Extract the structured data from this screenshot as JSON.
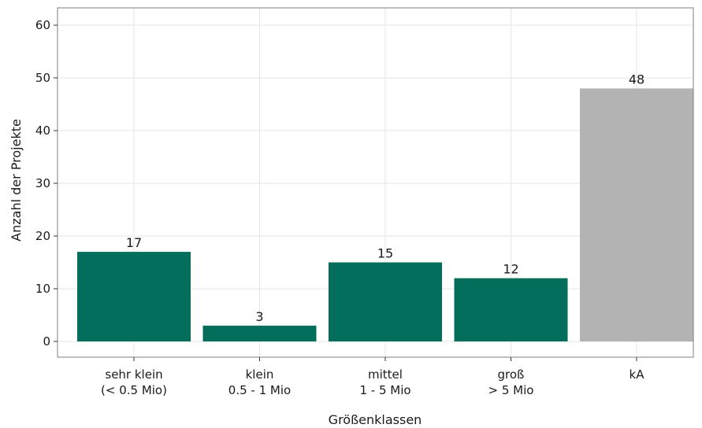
{
  "chart_data": {
    "type": "bar",
    "categories": [
      [
        "sehr klein",
        "(< 0.5 Mio)"
      ],
      [
        "klein",
        "0.5 - 1 Mio"
      ],
      [
        "mittel",
        "1 - 5 Mio"
      ],
      [
        "groß",
        "> 5 Mio"
      ],
      [
        "kA"
      ]
    ],
    "values": [
      17,
      3,
      15,
      12,
      48
    ],
    "bar_colors": [
      "#036e5b",
      "#036e5b",
      "#036e5b",
      "#036e5b",
      "#b3b3b3"
    ],
    "xlabel": "Größenklassen",
    "ylabel": "Anzahl der Projekte",
    "ylim": [
      0,
      60
    ],
    "yticks": [
      0,
      10,
      20,
      30,
      40,
      50,
      60
    ],
    "grid": true,
    "data_labels": true
  }
}
